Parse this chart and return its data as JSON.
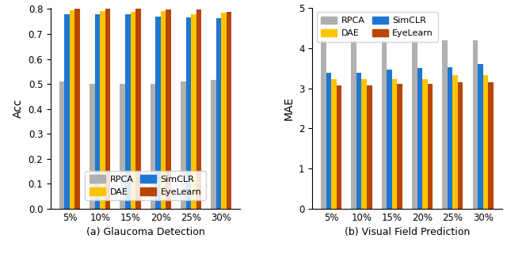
{
  "categories": [
    "5%",
    "10%",
    "15%",
    "20%",
    "25%",
    "30%"
  ],
  "acc_data": {
    "RPCA": [
      0.51,
      0.5,
      0.5,
      0.5,
      0.51,
      0.515
    ],
    "SimCLR": [
      0.78,
      0.778,
      0.778,
      0.77,
      0.768,
      0.762
    ],
    "DAE": [
      0.795,
      0.793,
      0.79,
      0.792,
      0.78,
      0.785
    ],
    "EyeLearn": [
      0.8,
      0.8,
      0.8,
      0.797,
      0.797,
      0.788
    ]
  },
  "mae_data": {
    "RPCA": [
      4.2,
      4.2,
      4.2,
      4.2,
      4.2,
      4.2
    ],
    "SimCLR": [
      3.38,
      3.38,
      3.47,
      3.5,
      3.53,
      3.6
    ],
    "DAE": [
      3.22,
      3.22,
      3.22,
      3.22,
      3.32,
      3.32
    ],
    "EyeLearn": [
      3.06,
      3.06,
      3.1,
      3.11,
      3.15,
      3.15
    ]
  },
  "colors": {
    "RPCA": "#b0b0b0",
    "SimCLR": "#1f77d4",
    "DAE": "#ffc400",
    "EyeLearn": "#b84500"
  },
  "acc_ylim": [
    0.0,
    0.8
  ],
  "mae_ylim": [
    0.0,
    5.0
  ],
  "acc_yticks": [
    0.0,
    0.1,
    0.2,
    0.3,
    0.4,
    0.5,
    0.6,
    0.7,
    0.8
  ],
  "mae_yticks": [
    0,
    1,
    2,
    3,
    4,
    5
  ],
  "acc_ylabel": "Acc",
  "mae_ylabel": "MAE",
  "acc_xlabel": "(a) Glaucoma Detection",
  "mae_xlabel": "(b) Visual Field Prediction",
  "bar_width": 0.17
}
